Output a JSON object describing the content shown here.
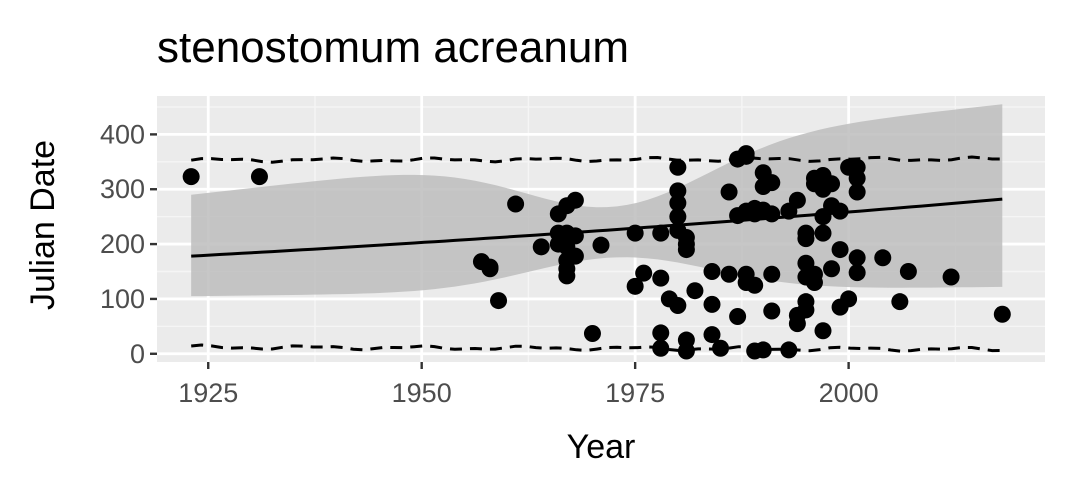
{
  "chart_data": {
    "type": "scatter",
    "title": "stenostomum acreanum",
    "xlabel": "Year",
    "ylabel": "Julian Date",
    "xlim": [
      1919,
      2023
    ],
    "ylim": [
      -15,
      470
    ],
    "x_ticks": [
      1925,
      1950,
      1975,
      2000
    ],
    "y_ticks": [
      0,
      100,
      200,
      300,
      400
    ],
    "grid": true,
    "legend": "none",
    "colors": {
      "panel": "#ebebeb",
      "grid_major": "#ffffff",
      "grid_minor": "#f5f5f5",
      "points": "#000000",
      "ribbon": "#bdbdbd",
      "line": "#000000"
    },
    "series": [
      {
        "kind": "points",
        "x": [
          1923,
          1931,
          1957,
          1958,
          1958,
          1959,
          1961,
          1964,
          1966,
          1966,
          1966,
          1967,
          1967,
          1967,
          1967,
          1967,
          1967,
          1968,
          1968,
          1968,
          1970,
          1971,
          1975,
          1975,
          1976,
          1978,
          1978,
          1978,
          1978,
          1979,
          1980,
          1980,
          1980,
          1980,
          1980,
          1980,
          1981,
          1981,
          1981,
          1981,
          1981,
          1982,
          1984,
          1984,
          1984,
          1985,
          1986,
          1986,
          1987,
          1987,
          1987,
          1988,
          1988,
          1988,
          1988,
          1988,
          1989,
          1989,
          1989,
          1989,
          1990,
          1990,
          1990,
          1990,
          1991,
          1991,
          1991,
          1991,
          1993,
          1993,
          1994,
          1994,
          1994,
          1995,
          1995,
          1995,
          1995,
          1995,
          1995,
          1996,
          1996,
          1996,
          1996,
          1997,
          1997,
          1997,
          1997,
          1997,
          1998,
          1998,
          1998,
          1999,
          1999,
          1999,
          2000,
          2000,
          2001,
          2001,
          2001,
          2001,
          2001,
          2004,
          2006,
          2007,
          2012,
          2018
        ],
        "y": [
          323,
          323,
          168,
          155,
          158,
          97,
          273,
          195,
          255,
          220,
          200,
          270,
          220,
          195,
          170,
          155,
          142,
          280,
          215,
          178,
          37,
          198,
          220,
          123,
          147,
          220,
          138,
          38,
          10,
          100,
          340,
          297,
          275,
          250,
          225,
          88,
          212,
          200,
          190,
          25,
          5,
          115,
          150,
          90,
          35,
          10,
          295,
          145,
          355,
          252,
          68,
          365,
          360,
          260,
          145,
          130,
          265,
          255,
          125,
          5,
          330,
          305,
          262,
          7,
          312,
          255,
          145,
          78,
          260,
          7,
          280,
          70,
          55,
          220,
          210,
          165,
          140,
          95,
          80,
          310,
          320,
          145,
          130,
          325,
          300,
          250,
          220,
          42,
          270,
          155,
          310,
          260,
          190,
          85,
          340,
          100,
          340,
          320,
          295,
          175,
          148,
          175,
          95,
          150,
          140,
          72
        ]
      },
      {
        "kind": "trend",
        "x": [
          1923,
          2018
        ],
        "y": [
          178,
          282
        ]
      },
      {
        "kind": "ci_band",
        "x": [
          1923,
          2018
        ],
        "y_low": [
          105,
          122
        ],
        "y_high": [
          290,
          455
        ]
      },
      {
        "kind": "upper_quantile",
        "x": [
          1923,
          2018
        ],
        "y": [
          353,
          355
        ]
      },
      {
        "kind": "lower_quantile",
        "x": [
          1923,
          2018
        ],
        "y": [
          12,
          8
        ]
      }
    ]
  }
}
